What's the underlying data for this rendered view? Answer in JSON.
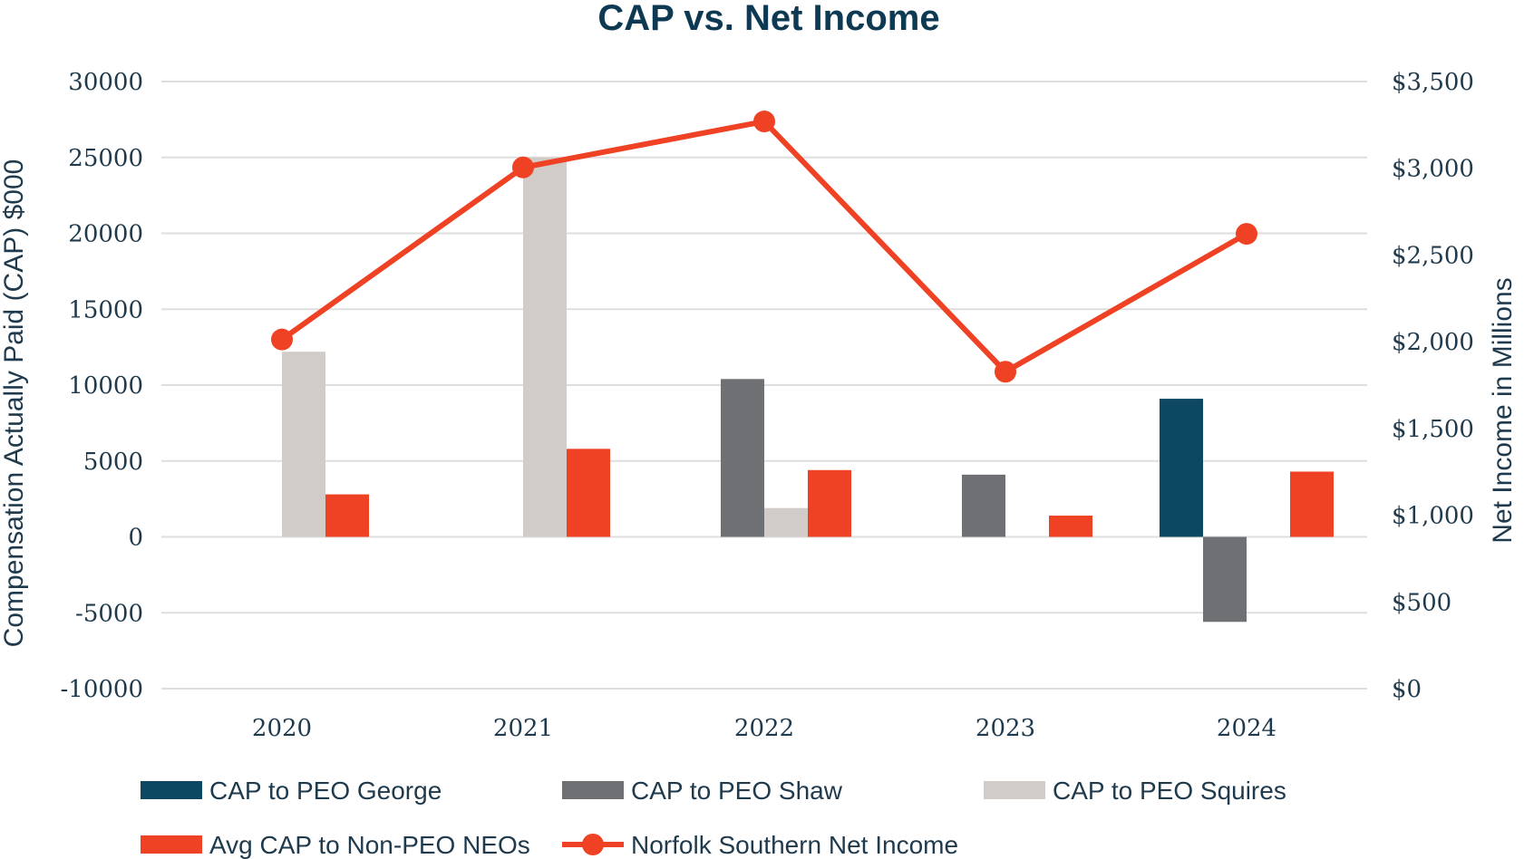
{
  "chart_data": {
    "type": "bar",
    "title": "CAP vs. Net Income",
    "categories": [
      "2020",
      "2021",
      "2022",
      "2023",
      "2024"
    ],
    "ylabel": "Compensation Actually Paid (CAP) $000",
    "y2label": "Net Income in Millions",
    "ylim": [
      -10000,
      30000
    ],
    "yticks": [
      30000,
      25000,
      20000,
      15000,
      10000,
      5000,
      0,
      -5000,
      -10000
    ],
    "ytick_labels": [
      "30000",
      "25000",
      "20000",
      "15000",
      "10000",
      "5000",
      "0",
      "-5000",
      "-10000"
    ],
    "y2lim": [
      0,
      3500
    ],
    "y2ticks": [
      3500,
      3000,
      2500,
      2000,
      1500,
      1000,
      500,
      0
    ],
    "y2tick_labels": [
      "$3,500",
      "$3,000",
      "$2,500",
      "$2,000",
      "$1,500",
      "$1,000",
      "$500",
      "$0"
    ],
    "grid": true,
    "legend_position": "bottom",
    "series": [
      {
        "name": "CAP to PEO George",
        "type": "bar",
        "axis": "left",
        "color": "#0d4863",
        "values": [
          null,
          null,
          null,
          null,
          9100
        ]
      },
      {
        "name": "CAP to PEO Shaw",
        "type": "bar",
        "axis": "left",
        "color": "#6f7073",
        "values": [
          null,
          null,
          10400,
          4100,
          -5600
        ]
      },
      {
        "name": "CAP to PEO Squires",
        "type": "bar",
        "axis": "left",
        "color": "#d1ccc7",
        "values": [
          12200,
          25000,
          1900,
          null,
          null
        ]
      },
      {
        "name": "Avg CAP to Non-PEO NEOs",
        "type": "bar",
        "axis": "left",
        "color": "#ef4123",
        "values": [
          2800,
          5800,
          4400,
          1400,
          4300
        ]
      },
      {
        "name": "Norfolk Southern Net Income",
        "type": "line",
        "axis": "right",
        "color": "#ef4123",
        "values": [
          2013,
          3005,
          3270,
          1827,
          2622
        ]
      }
    ]
  }
}
